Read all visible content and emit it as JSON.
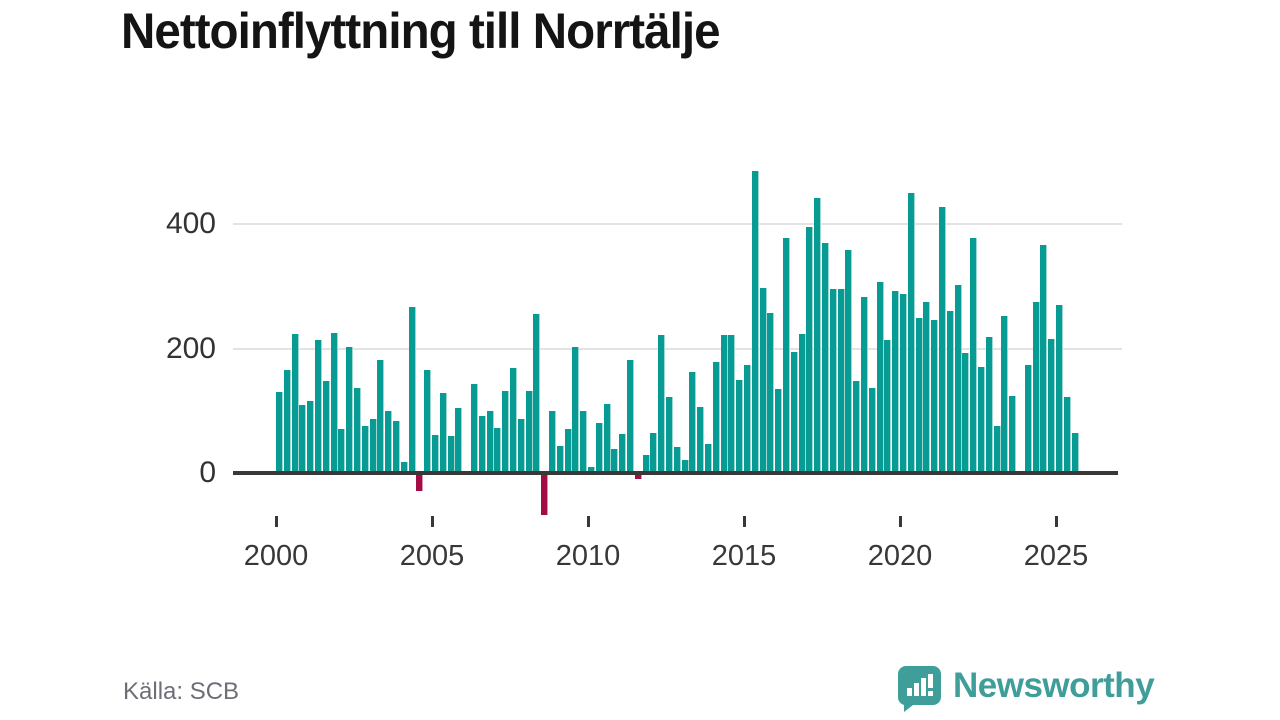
{
  "header": {
    "title": "Nettoinflyttning till Norrtälje"
  },
  "footer": {
    "source_label": "Källa: SCB",
    "brand": "Newsworthy"
  },
  "colors": {
    "bar_positive": "#089B93",
    "bar_negative": "#A30D45",
    "baseline": "#383838",
    "gridline": "#E3E3E3",
    "axis_text": "#333333",
    "title_text": "#141414",
    "source_text": "#6E6E78",
    "brand_teal": "#3F9E99"
  },
  "chart_data": {
    "type": "bar",
    "title": "Nettoinflyttning till Norrtälje",
    "frequency": "quarterly",
    "start_year": 2000,
    "start_quarter": 1,
    "x_tick_labels": [
      "2000",
      "2005",
      "2010",
      "2015",
      "2020",
      "2025"
    ],
    "y_ticks": [
      0,
      200,
      400
    ],
    "ylim": [
      -80,
      500
    ],
    "grid": "horizontal",
    "legend": "none",
    "values": [
      130,
      165,
      224,
      109,
      116,
      214,
      147,
      225,
      70,
      203,
      136,
      76,
      87,
      181,
      100,
      83,
      17,
      266,
      -29,
      166,
      61,
      128,
      60,
      104,
      0,
      143,
      92,
      100,
      72,
      132,
      169,
      86,
      131,
      256,
      -67,
      99,
      43,
      71,
      203,
      100,
      10,
      81,
      111,
      39,
      62,
      181,
      -9,
      29,
      65,
      221,
      122,
      42,
      21,
      162,
      106,
      46,
      179,
      221,
      222,
      149,
      173,
      485,
      297,
      257,
      135,
      378,
      194,
      223,
      395,
      442,
      369,
      295,
      295,
      358,
      147,
      282,
      137,
      307,
      214,
      293,
      288,
      450,
      249,
      274,
      245,
      427,
      260,
      302,
      193,
      378,
      170,
      219,
      76,
      252,
      123,
      0,
      174,
      275,
      366,
      215,
      270,
      122,
      64
    ]
  }
}
